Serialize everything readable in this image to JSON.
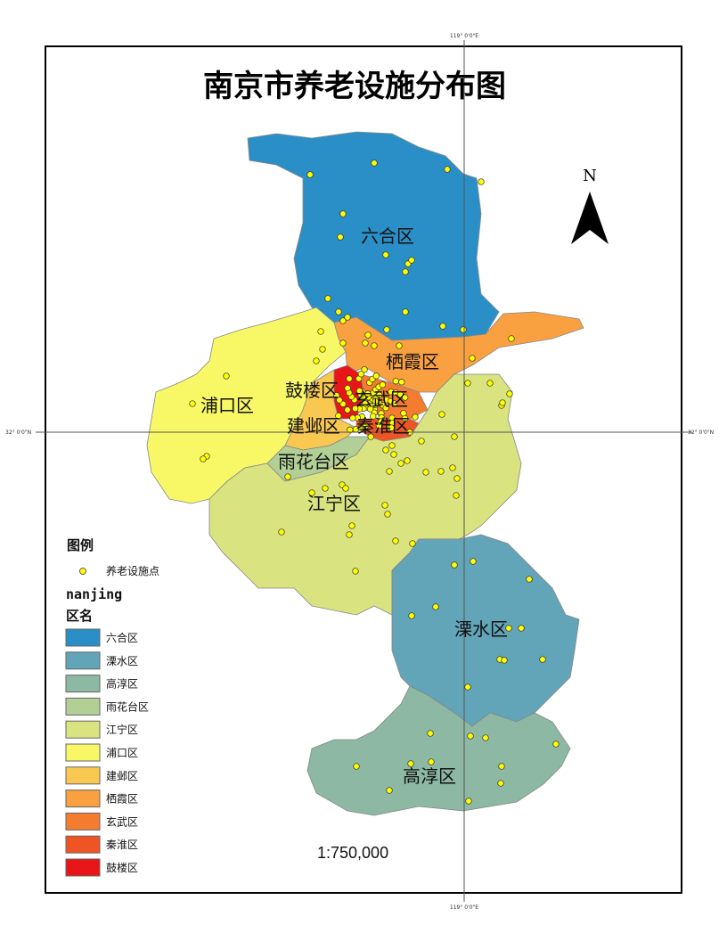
{
  "title": "南京市养老设施分布图",
  "graticule": {
    "top": "119° 0'0\"E",
    "bottom": "119° 0'0\"E",
    "left": "32° 0'0\"N",
    "right": "32° 0'0\"N"
  },
  "north_arrow": "N",
  "scale": "1:750,000",
  "legend": {
    "title": "图例",
    "point_label": "养老设施点",
    "point_color": "#ffff00",
    "layer": "nanjing",
    "field": "区名",
    "classes": [
      {
        "name": "六合区",
        "color": "#2b8fc7"
      },
      {
        "name": "溧水区",
        "color": "#62a4b8"
      },
      {
        "name": "高淳区",
        "color": "#8cb8a4"
      },
      {
        "name": "雨花台区",
        "color": "#b2cf95"
      },
      {
        "name": "江宁区",
        "color": "#d9e37f"
      },
      {
        "name": "浦口区",
        "color": "#f8f866"
      },
      {
        "name": "建邺区",
        "color": "#f9c850"
      },
      {
        "name": "栖霞区",
        "color": "#f9a040"
      },
      {
        "name": "玄武区",
        "color": "#f47c30"
      },
      {
        "name": "秦淮区",
        "color": "#ee5424"
      },
      {
        "name": "鼓楼区",
        "color": "#e81618"
      }
    ]
  },
  "district_labels": {
    "liuhe": "六合区",
    "qixia": "栖霞区",
    "pukou": "浦口区",
    "gulou": "鼓楼区",
    "xuanwu": "玄武区",
    "jianye": "建邺区",
    "qinhuai": "秦淮区",
    "yuhuatai": "雨花台区",
    "jiangning": "江宁区",
    "lishui": "溧水区",
    "gaochun": "高淳区"
  }
}
